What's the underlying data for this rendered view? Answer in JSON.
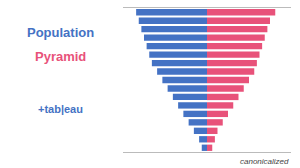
{
  "chart_data": {
    "type": "bar",
    "orientation": "horizontal",
    "title": "Population",
    "subtitle": "Pyramid",
    "annotations": [
      "+tab|eau",
      "canonicalized"
    ],
    "categories": [
      null,
      null,
      null,
      null,
      null,
      null,
      null,
      null,
      null,
      null,
      null,
      null,
      null,
      null,
      null,
      null,
      null
    ],
    "series": [
      {
        "color": "#4472C4",
        "values": [
          2,
          3,
          5,
          7,
          9,
          11,
          13,
          15,
          17,
          19,
          21,
          22,
          23,
          24,
          25,
          26,
          27
        ]
      },
      {
        "color": "#E8527A",
        "values": [
          2,
          3,
          4,
          6,
          8,
          10,
          12,
          14,
          16,
          18,
          19,
          20,
          21,
          22,
          23,
          24,
          26
        ]
      }
    ],
    "xlim": [
      0,
      32
    ],
    "grid": false,
    "tick_labels": false
  }
}
